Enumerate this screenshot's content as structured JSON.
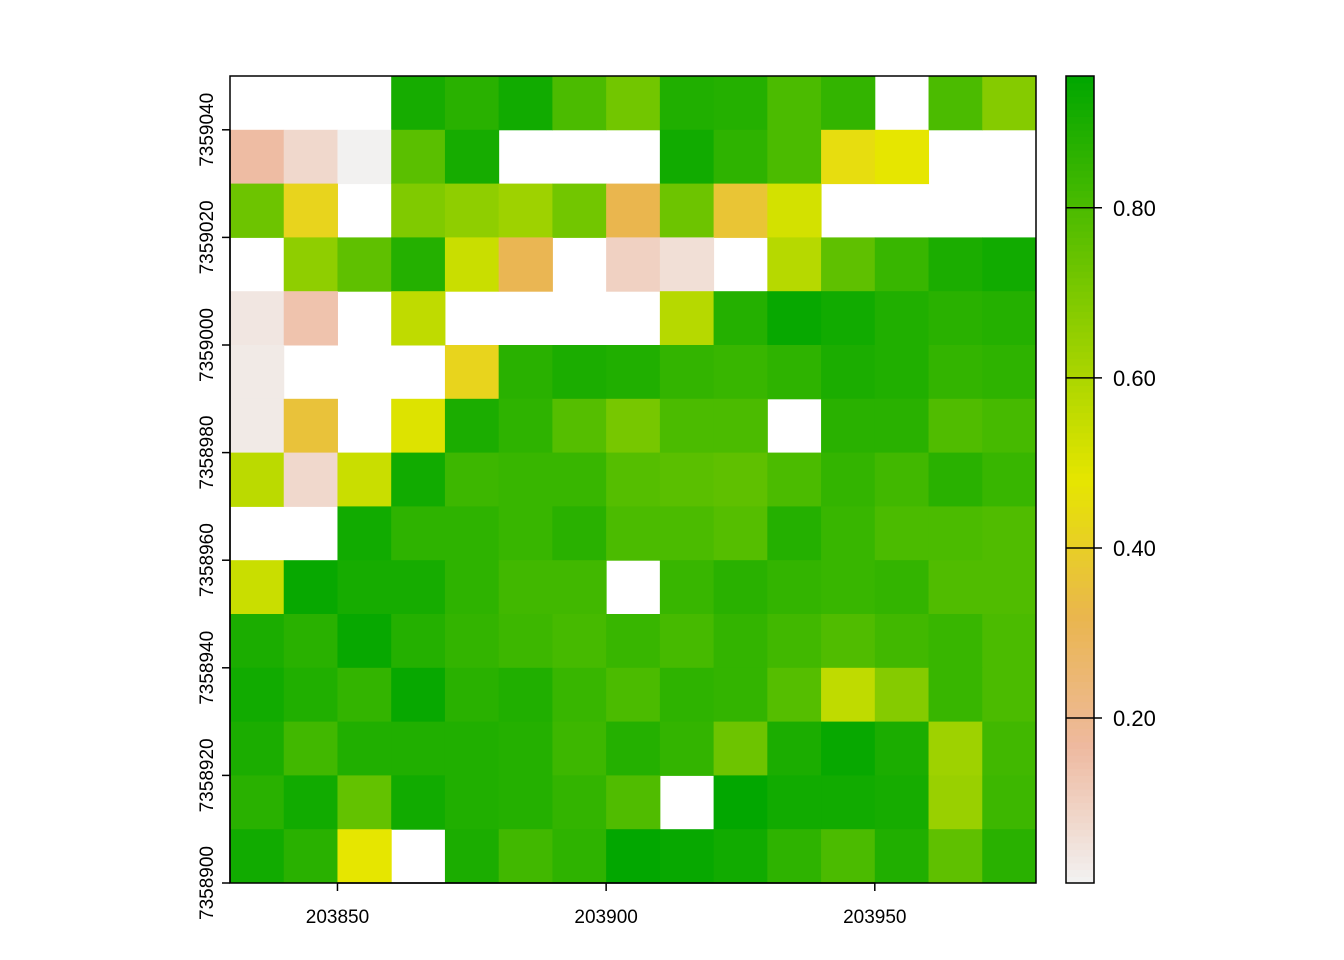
{
  "chart_data": {
    "type": "heatmap",
    "title": "",
    "xlabel": "",
    "ylabel": "",
    "x_range": [
      203830,
      203980
    ],
    "y_range": [
      7358900,
      7359050
    ],
    "cell_size": 10,
    "x_ticks": [
      203850,
      203900,
      203950
    ],
    "x_tick_labels": [
      "203850",
      "203900",
      "203950"
    ],
    "y_ticks": [
      7358900,
      7358920,
      7358940,
      7358960,
      7358980,
      7359000,
      7359020,
      7359040
    ],
    "y_tick_labels": [
      "7358900",
      "7358920",
      "7358940",
      "7358960",
      "7358980",
      "7359000",
      "7359020",
      "7359040"
    ],
    "value_range": [
      0.006,
      0.955
    ],
    "colormap": [
      "#F2F2F2",
      "#EEB99F",
      "#EAB64E",
      "#E6E600",
      "#00A600"
    ],
    "legend": {
      "position": "right",
      "ticks": [
        0.2,
        0.4,
        0.6,
        0.8
      ],
      "tick_labels": [
        "0.20",
        "0.40",
        "0.60",
        "0.80"
      ]
    },
    "rows_top_to_bottom": [
      [
        null,
        null,
        null,
        0.91,
        0.87,
        0.92,
        0.8,
        0.72,
        0.89,
        0.88,
        0.8,
        0.85,
        null,
        0.8,
        0.68
      ],
      [
        0.16,
        0.08,
        0.01,
        0.77,
        0.91,
        null,
        null,
        null,
        0.92,
        0.86,
        0.8,
        0.45,
        0.48,
        null,
        null
      ],
      [
        0.73,
        0.42,
        null,
        0.69,
        0.66,
        0.63,
        0.72,
        0.32,
        0.73,
        0.37,
        0.52,
        null,
        null,
        null,
        null
      ],
      [
        null,
        0.66,
        0.76,
        0.88,
        0.54,
        0.31,
        null,
        0.1,
        0.06,
        null,
        0.58,
        0.76,
        0.84,
        0.9,
        0.92
      ],
      [
        0.04,
        0.14,
        null,
        0.56,
        null,
        null,
        null,
        null,
        0.58,
        0.88,
        0.94,
        0.92,
        0.89,
        0.87,
        0.88
      ],
      [
        0.03,
        null,
        null,
        null,
        0.42,
        0.87,
        0.9,
        0.89,
        0.85,
        0.84,
        0.86,
        0.9,
        0.89,
        0.85,
        0.86
      ],
      [
        0.03,
        0.36,
        null,
        0.5,
        0.9,
        0.86,
        0.78,
        0.71,
        0.8,
        0.8,
        null,
        0.87,
        0.87,
        0.79,
        0.81
      ],
      [
        0.57,
        0.08,
        0.54,
        0.92,
        0.83,
        0.84,
        0.84,
        0.78,
        0.77,
        0.76,
        0.8,
        0.85,
        0.82,
        0.87,
        0.84
      ],
      [
        null,
        null,
        0.92,
        0.86,
        0.86,
        0.84,
        0.87,
        0.8,
        0.8,
        0.78,
        0.88,
        0.84,
        0.8,
        0.8,
        0.79
      ],
      [
        0.54,
        0.94,
        0.91,
        0.91,
        0.86,
        0.82,
        0.82,
        null,
        0.84,
        0.87,
        0.85,
        0.84,
        0.85,
        0.79,
        0.79
      ],
      [
        0.9,
        0.87,
        0.94,
        0.88,
        0.85,
        0.83,
        0.81,
        0.84,
        0.81,
        0.85,
        0.82,
        0.79,
        0.82,
        0.84,
        0.8
      ],
      [
        0.92,
        0.89,
        0.85,
        0.94,
        0.87,
        0.89,
        0.84,
        0.8,
        0.86,
        0.85,
        0.78,
        0.56,
        0.68,
        0.84,
        0.8
      ],
      [
        0.9,
        0.82,
        0.89,
        0.89,
        0.89,
        0.88,
        0.83,
        0.88,
        0.85,
        0.73,
        0.9,
        0.94,
        0.9,
        0.63,
        0.82
      ],
      [
        0.87,
        0.92,
        0.75,
        0.92,
        0.89,
        0.88,
        0.85,
        0.79,
        null,
        0.95,
        0.92,
        0.92,
        0.91,
        0.64,
        0.83
      ],
      [
        0.92,
        0.87,
        0.48,
        null,
        0.9,
        0.82,
        0.86,
        0.95,
        0.94,
        0.92,
        0.86,
        0.8,
        0.89,
        0.76,
        0.87
      ]
    ]
  }
}
